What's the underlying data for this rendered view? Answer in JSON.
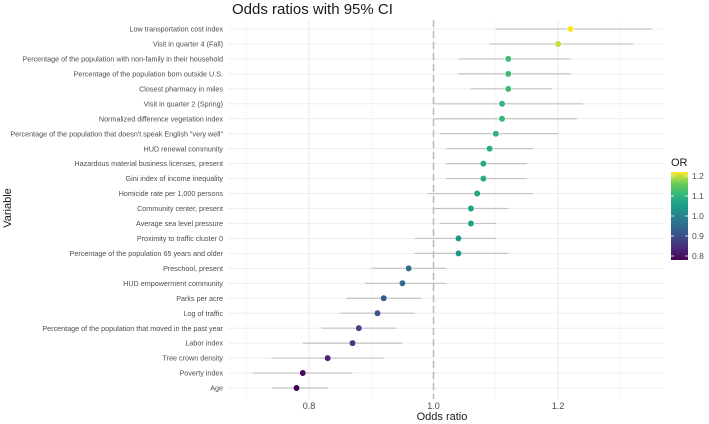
{
  "chart_data": {
    "type": "scatter",
    "subtype": "forest-plot",
    "title": "Odds ratios with 95% CI",
    "xlabel": "Odds ratio",
    "ylabel": "Variable",
    "xlim": [
      0.67,
      1.37
    ],
    "x_ticks": [
      0.8,
      1.0,
      1.2
    ],
    "x_tick_labels": [
      "0.8",
      "1.0",
      "1.2"
    ],
    "reference_line": 1.0,
    "grid": true,
    "legend": {
      "title": "OR",
      "position": "right",
      "ticks": [
        0.8,
        0.9,
        1.0,
        1.1,
        1.2
      ],
      "tick_labels": [
        "0.8",
        "0.9",
        "1.0",
        "1.1",
        "1.2"
      ],
      "range": [
        0.78,
        1.22
      ]
    },
    "variables": [
      {
        "label": "Low transportation cost index",
        "or": 1.22,
        "lo": 1.1,
        "hi": 1.35
      },
      {
        "label": "Visit in quarter 4 (Fall)",
        "or": 1.2,
        "lo": 1.09,
        "hi": 1.32
      },
      {
        "label": "Percentage of the population with non-family in their household",
        "or": 1.12,
        "lo": 1.04,
        "hi": 1.22
      },
      {
        "label": "Percentage of the population born outside U.S.",
        "or": 1.12,
        "lo": 1.04,
        "hi": 1.22
      },
      {
        "label": "Closest pharmacy in miles",
        "or": 1.12,
        "lo": 1.06,
        "hi": 1.19
      },
      {
        "label": "Visit in quarter 2 (Spring)",
        "or": 1.11,
        "lo": 1.0,
        "hi": 1.24
      },
      {
        "label": "Normalized difference vegetation index",
        "or": 1.11,
        "lo": 1.0,
        "hi": 1.23
      },
      {
        "label": "Percentage of the population that doesn't speak English \"very well\"",
        "or": 1.1,
        "lo": 1.01,
        "hi": 1.2
      },
      {
        "label": "HUD renewal community",
        "or": 1.09,
        "lo": 1.02,
        "hi": 1.16
      },
      {
        "label": "Hazardous material business licenses, present",
        "or": 1.08,
        "lo": 1.02,
        "hi": 1.15
      },
      {
        "label": "Gini index of income inequality",
        "or": 1.08,
        "lo": 1.02,
        "hi": 1.15
      },
      {
        "label": "Homicide rate per 1,000 persons",
        "or": 1.07,
        "lo": 0.99,
        "hi": 1.16
      },
      {
        "label": "Community center, present",
        "or": 1.06,
        "lo": 1.0,
        "hi": 1.12
      },
      {
        "label": "Average sea level pressure",
        "or": 1.06,
        "lo": 1.01,
        "hi": 1.1
      },
      {
        "label": "Proximity to traffic cluster 0",
        "or": 1.04,
        "lo": 0.97,
        "hi": 1.1
      },
      {
        "label": "Percentage of the population 65 years and older",
        "or": 1.04,
        "lo": 0.97,
        "hi": 1.12
      },
      {
        "label": "Preschool, present",
        "or": 0.96,
        "lo": 0.9,
        "hi": 1.02
      },
      {
        "label": "HUD empowerment community",
        "or": 0.95,
        "lo": 0.89,
        "hi": 1.02
      },
      {
        "label": "Parks per acre",
        "or": 0.92,
        "lo": 0.86,
        "hi": 0.98
      },
      {
        "label": "Log of traffic",
        "or": 0.91,
        "lo": 0.85,
        "hi": 0.97
      },
      {
        "label": "Percentage of the population that moved in the past year",
        "or": 0.88,
        "lo": 0.82,
        "hi": 0.94
      },
      {
        "label": "Labor index",
        "or": 0.87,
        "lo": 0.79,
        "hi": 0.95
      },
      {
        "label": "Tree crown density",
        "or": 0.83,
        "lo": 0.74,
        "hi": 0.92
      },
      {
        "label": "Poverty index",
        "or": 0.79,
        "lo": 0.71,
        "hi": 0.87
      },
      {
        "label": "Age",
        "or": 0.78,
        "lo": 0.74,
        "hi": 0.83
      }
    ]
  }
}
